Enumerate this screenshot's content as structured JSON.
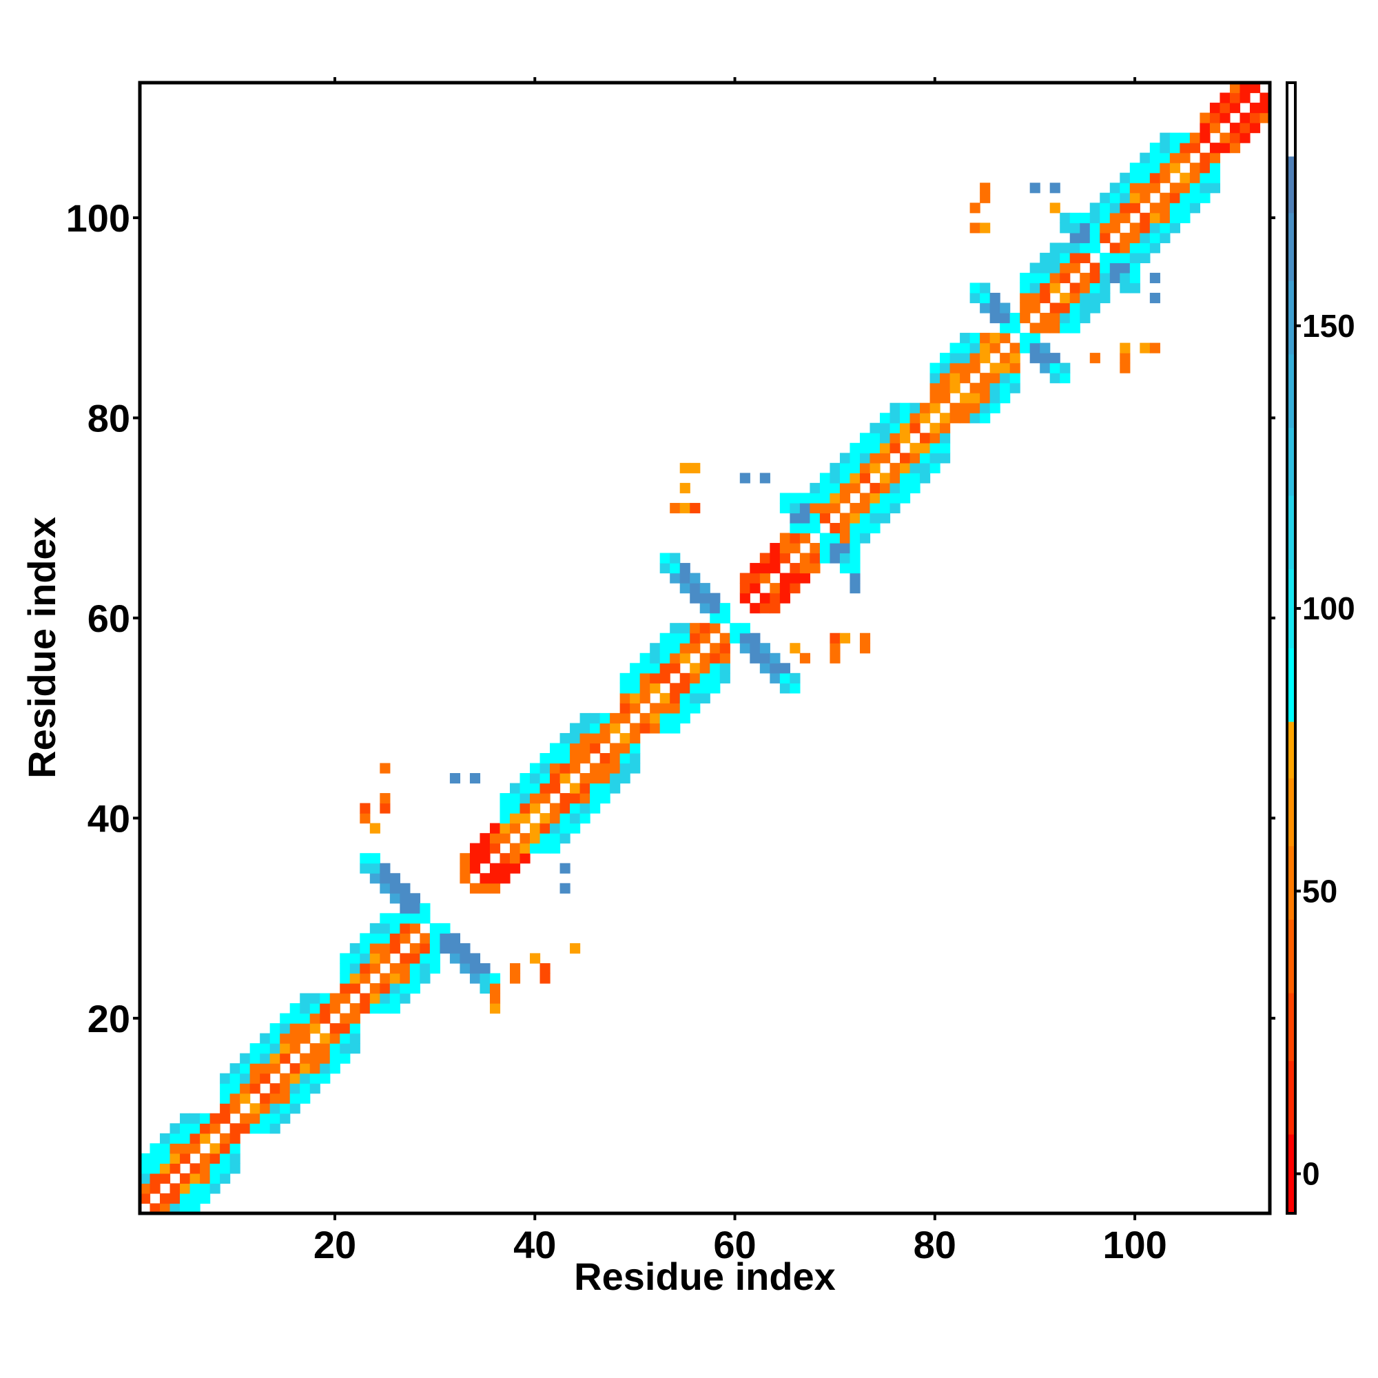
{
  "chart_data": {
    "type": "heatmap",
    "title": "",
    "xlabel": "Residue index",
    "ylabel": "Residue index",
    "xlim": [
      1,
      113
    ],
    "ylim": [
      1,
      113
    ],
    "x_ticks": [
      20,
      40,
      60,
      80,
      100
    ],
    "y_ticks": [
      20,
      40,
      60,
      80,
      100
    ],
    "colorbar": {
      "ticks": [
        0,
        50,
        100,
        150
      ],
      "range": [
        -7,
        193
      ],
      "bands": [
        {
          "from": -7,
          "to": 7,
          "color": "#ff0000"
        },
        {
          "from": 7,
          "to": 20,
          "color": "#ff2a00"
        },
        {
          "from": 20,
          "to": 32,
          "color": "#ff4500"
        },
        {
          "from": 32,
          "to": 45,
          "color": "#ff6000"
        },
        {
          "from": 45,
          "to": 58,
          "color": "#ff7a00"
        },
        {
          "from": 58,
          "to": 70,
          "color": "#ff9000"
        },
        {
          "from": 70,
          "to": 80,
          "color": "#ffa500"
        },
        {
          "from": 80,
          "to": 93,
          "color": "#00ffff"
        },
        {
          "from": 93,
          "to": 107,
          "color": "#18e6f0"
        },
        {
          "from": 107,
          "to": 120,
          "color": "#26d2e8"
        },
        {
          "from": 120,
          "to": 132,
          "color": "#30bee0"
        },
        {
          "from": 132,
          "to": 145,
          "color": "#36aed8"
        },
        {
          "from": 145,
          "to": 158,
          "color": "#3f9fd0"
        },
        {
          "from": 158,
          "to": 170,
          "color": "#4a8fc4"
        },
        {
          "from": 170,
          "to": 180,
          "color": "#4f7fb6"
        },
        {
          "from": 180,
          "to": 193,
          "color": "#ffffff"
        }
      ]
    },
    "palette": {
      "red": "#ff1a00",
      "redorange": "#ff4a00",
      "orange": "#ff7000",
      "amber": "#ffa000",
      "cyan": "#00ffff",
      "lightblue": "#26d2e8",
      "blue": "#3fa6d8",
      "steelblue": "#4a8cc6"
    },
    "segments": [
      {
        "start": 1,
        "end": 9,
        "kind": "helix"
      },
      {
        "start": 9,
        "end": 21,
        "kind": "helix"
      },
      {
        "start": 21,
        "end": 29,
        "kind": "helix"
      },
      {
        "start": 33,
        "end": 38,
        "kind": "loop"
      },
      {
        "start": 37,
        "end": 49,
        "kind": "helix"
      },
      {
        "start": 49,
        "end": 58,
        "kind": "helix"
      },
      {
        "start": 61,
        "end": 67,
        "kind": "loop"
      },
      {
        "start": 66,
        "end": 80,
        "kind": "helix"
      },
      {
        "start": 80,
        "end": 87,
        "kind": "helix"
      },
      {
        "start": 89,
        "end": 96,
        "kind": "helix"
      },
      {
        "start": 95,
        "end": 107,
        "kind": "helix"
      },
      {
        "start": 107,
        "end": 113,
        "kind": "loop"
      }
    ],
    "crossings": [
      {
        "center": 29.5,
        "arm": 7
      },
      {
        "center": 59.5,
        "arm": 7
      },
      {
        "center": 68.5,
        "arm": 4
      },
      {
        "center": 88.5,
        "arm": 5
      },
      {
        "center": 96.5,
        "arm": 4
      }
    ],
    "scatter_cells": [
      {
        "i": 44,
        "j": 27,
        "c": "amber"
      },
      {
        "i": 41,
        "j": 24,
        "c": "redorange"
      },
      {
        "i": 41,
        "j": 25,
        "c": "redorange"
      },
      {
        "i": 40,
        "j": 26,
        "c": "amber"
      },
      {
        "i": 38,
        "j": 24,
        "c": "orange"
      },
      {
        "i": 38,
        "j": 25,
        "c": "orange"
      },
      {
        "i": 36,
        "j": 21,
        "c": "amber"
      },
      {
        "i": 36,
        "j": 22,
        "c": "orange"
      },
      {
        "i": 36,
        "j": 23,
        "c": "orange"
      },
      {
        "i": 25,
        "j": 41,
        "c": "redorange"
      },
      {
        "i": 25,
        "j": 42,
        "c": "orange"
      },
      {
        "i": 25,
        "j": 45,
        "c": "orange"
      },
      {
        "i": 24,
        "j": 39,
        "c": "amber"
      },
      {
        "i": 23,
        "j": 40,
        "c": "orange"
      },
      {
        "i": 23,
        "j": 41,
        "c": "redorange"
      },
      {
        "i": 43,
        "j": 33,
        "c": "steelblue"
      },
      {
        "i": 43,
        "j": 35,
        "c": "steelblue"
      },
      {
        "i": 34,
        "j": 44,
        "c": "steelblue"
      },
      {
        "i": 32,
        "j": 44,
        "c": "steelblue"
      },
      {
        "i": 73,
        "j": 57,
        "c": "orange"
      },
      {
        "i": 73,
        "j": 58,
        "c": "orange"
      },
      {
        "i": 71,
        "j": 58,
        "c": "amber"
      },
      {
        "i": 70,
        "j": 56,
        "c": "orange"
      },
      {
        "i": 70,
        "j": 57,
        "c": "orange"
      },
      {
        "i": 70,
        "j": 58,
        "c": "redorange"
      },
      {
        "i": 67,
        "j": 56,
        "c": "orange"
      },
      {
        "i": 66,
        "j": 57,
        "c": "amber"
      },
      {
        "i": 56,
        "j": 71,
        "c": "redorange"
      },
      {
        "i": 55,
        "j": 71,
        "c": "amber"
      },
      {
        "i": 55,
        "j": 73,
        "c": "amber"
      },
      {
        "i": 56,
        "j": 75,
        "c": "amber"
      },
      {
        "i": 55,
        "j": 75,
        "c": "amber"
      },
      {
        "i": 54,
        "j": 71,
        "c": "orange"
      },
      {
        "i": 72,
        "j": 63,
        "c": "steelblue"
      },
      {
        "i": 72,
        "j": 64,
        "c": "steelblue"
      },
      {
        "i": 63,
        "j": 74,
        "c": "steelblue"
      },
      {
        "i": 61,
        "j": 74,
        "c": "steelblue"
      },
      {
        "i": 102,
        "j": 87,
        "c": "orange"
      },
      {
        "i": 101,
        "j": 87,
        "c": "amber"
      },
      {
        "i": 99,
        "j": 85,
        "c": "orange"
      },
      {
        "i": 99,
        "j": 86,
        "c": "orange"
      },
      {
        "i": 99,
        "j": 87,
        "c": "amber"
      },
      {
        "i": 96,
        "j": 86,
        "c": "orange"
      },
      {
        "i": 85,
        "j": 99,
        "c": "amber"
      },
      {
        "i": 84,
        "j": 99,
        "c": "orange"
      },
      {
        "i": 84,
        "j": 101,
        "c": "orange"
      },
      {
        "i": 85,
        "j": 102,
        "c": "orange"
      },
      {
        "i": 85,
        "j": 103,
        "c": "orange"
      },
      {
        "i": 92,
        "j": 101,
        "c": "amber"
      },
      {
        "i": 102,
        "j": 92,
        "c": "steelblue"
      },
      {
        "i": 102,
        "j": 94,
        "c": "steelblue"
      },
      {
        "i": 92,
        "j": 103,
        "c": "steelblue"
      },
      {
        "i": 90,
        "j": 103,
        "c": "steelblue"
      }
    ]
  }
}
